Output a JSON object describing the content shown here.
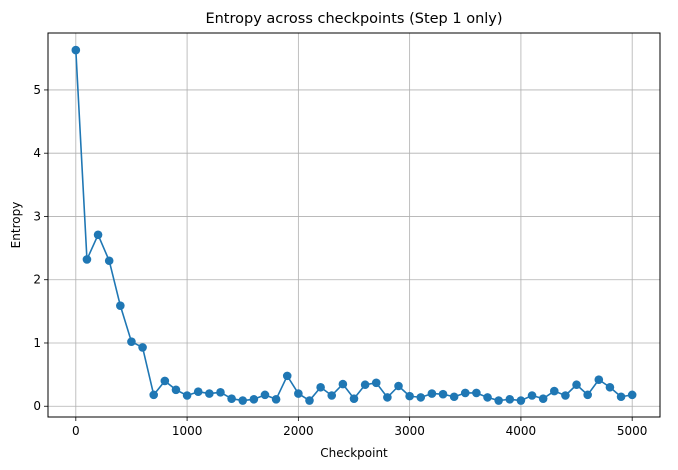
{
  "chart_data": {
    "type": "line",
    "title": "Entropy across checkpoints (Step 1 only)",
    "xlabel": "Checkpoint",
    "ylabel": "Entropy",
    "xlim": [
      -250,
      5250
    ],
    "ylim": [
      -0.17,
      5.9
    ],
    "xticks": [
      0,
      1000,
      2000,
      3000,
      4000,
      5000
    ],
    "xtick_labels": [
      "0",
      "1000",
      "2000",
      "3000",
      "4000",
      "5000"
    ],
    "yticks": [
      0,
      1,
      2,
      3,
      4,
      5
    ],
    "ytick_labels": [
      "0",
      "1",
      "2",
      "3",
      "4",
      "5"
    ],
    "grid": true,
    "series": [
      {
        "color": "#1f77b4",
        "marker": "circle",
        "x": [
          0,
          100,
          200,
          300,
          400,
          500,
          600,
          700,
          800,
          900,
          1000,
          1100,
          1200,
          1300,
          1400,
          1500,
          1600,
          1700,
          1800,
          1900,
          2000,
          2100,
          2200,
          2300,
          2400,
          2500,
          2600,
          2700,
          2800,
          2900,
          3000,
          3100,
          3200,
          3300,
          3400,
          3500,
          3600,
          3700,
          3800,
          3900,
          4000,
          4100,
          4200,
          4300,
          4400,
          4500,
          4600,
          4700,
          4800,
          4900,
          5000
        ],
        "y": [
          5.63,
          2.32,
          2.71,
          2.3,
          1.59,
          1.02,
          0.93,
          0.18,
          0.4,
          0.26,
          0.17,
          0.23,
          0.2,
          0.22,
          0.12,
          0.09,
          0.11,
          0.18,
          0.11,
          0.48,
          0.2,
          0.09,
          0.3,
          0.17,
          0.35,
          0.12,
          0.34,
          0.37,
          0.14,
          0.32,
          0.16,
          0.14,
          0.2,
          0.19,
          0.15,
          0.21,
          0.21,
          0.14,
          0.09,
          0.11,
          0.09,
          0.17,
          0.12,
          0.24,
          0.17,
          0.34,
          0.18,
          0.42,
          0.3,
          0.15,
          0.18
        ]
      }
    ]
  }
}
